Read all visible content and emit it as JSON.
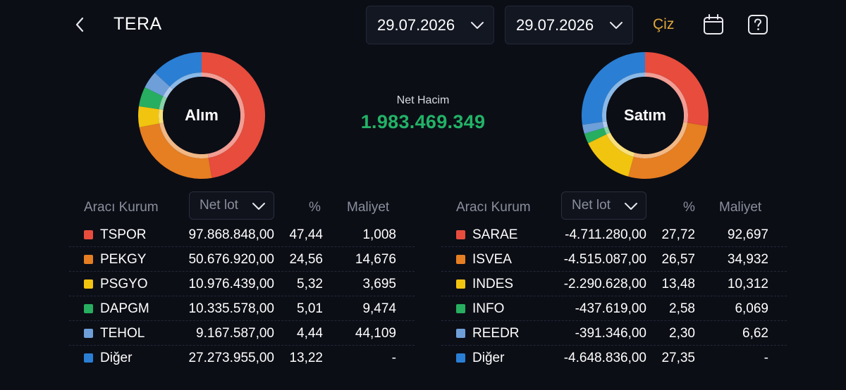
{
  "header": {
    "title": "TERA",
    "start_date": "29.07.2026",
    "end_date": "29.07.2026",
    "draw_label": "Çiz",
    "draw_color": "#e0a83a"
  },
  "colors": [
    "#e74c3c",
    "#e67e22",
    "#f1c40f",
    "#27ae60",
    "#6e9fd8",
    "#2a7fd4"
  ],
  "summary": {
    "label": "Net Hacim",
    "value": "1.983.469.349",
    "color": "#22b367"
  },
  "buy": {
    "label": "Alım",
    "headers": {
      "broker": "Aracı Kurum",
      "selector": "Net lot",
      "percent": "%",
      "cost": "Maliyet"
    },
    "rows": [
      {
        "name": "TSPOR",
        "lot": "97.868.848,00",
        "pct": "47,44",
        "cost": "1,008",
        "share": 47.44
      },
      {
        "name": "PEKGY",
        "lot": "50.676.920,00",
        "pct": "24,56",
        "cost": "14,676",
        "share": 24.56
      },
      {
        "name": "PSGYO",
        "lot": "10.976.439,00",
        "pct": "5,32",
        "cost": "3,695",
        "share": 5.32
      },
      {
        "name": "DAPGM",
        "lot": "10.335.578,00",
        "pct": "5,01",
        "cost": "9,474",
        "share": 5.01
      },
      {
        "name": "TEHOL",
        "lot": "9.167.587,00",
        "pct": "4,44",
        "cost": "44,109",
        "share": 4.44
      },
      {
        "name": "Diğer",
        "lot": "27.273.955,00",
        "pct": "13,22",
        "cost": "-",
        "share": 13.22
      }
    ]
  },
  "sell": {
    "label": "Satım",
    "headers": {
      "broker": "Aracı Kurum",
      "selector": "Net lot",
      "percent": "%",
      "cost": "Maliyet"
    },
    "rows": [
      {
        "name": "SARAE",
        "lot": "-4.711.280,00",
        "pct": "27,72",
        "cost": "92,697",
        "share": 27.72
      },
      {
        "name": "ISVEA",
        "lot": "-4.515.087,00",
        "pct": "26,57",
        "cost": "34,932",
        "share": 26.57
      },
      {
        "name": "INDES",
        "lot": "-2.290.628,00",
        "pct": "13,48",
        "cost": "10,312",
        "share": 13.48
      },
      {
        "name": "INFO",
        "lot": "-437.619,00",
        "pct": "2,58",
        "cost": "6,069",
        "share": 2.58
      },
      {
        "name": "REEDR",
        "lot": "-391.346,00",
        "pct": "2,30",
        "cost": "6,62",
        "share": 2.3
      },
      {
        "name": "Diğer",
        "lot": "-4.648.836,00",
        "pct": "27,35",
        "cost": "-",
        "share": 27.35
      }
    ]
  }
}
